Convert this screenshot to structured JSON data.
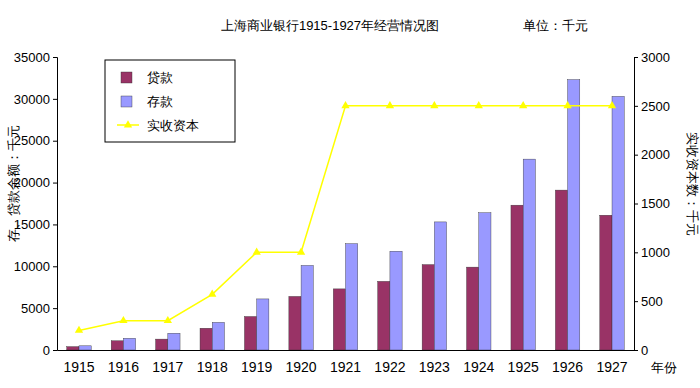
{
  "chart_data": {
    "type": "bar",
    "title": "上海商业银行1915-1927年经营情况图",
    "subtitle": "单位：千元",
    "x_label": "年份",
    "y_label": "存、贷款余额：千元",
    "y2_label": "实收资本数：千元",
    "categories": [
      "1915",
      "1916",
      "1917",
      "1918",
      "1919",
      "1920",
      "1921",
      "1922",
      "1923",
      "1924",
      "1925",
      "1926",
      "1927"
    ],
    "series": [
      {
        "name": "贷款",
        "type": "bar",
        "color": "#993366",
        "values": [
          400,
          1100,
          1300,
          2600,
          4000,
          6400,
          7300,
          8200,
          10200,
          9900,
          17300,
          19100,
          16100
        ]
      },
      {
        "name": "存款",
        "type": "bar",
        "color": "#9999ff",
        "values": [
          500,
          1400,
          2000,
          3300,
          6100,
          10100,
          12700,
          11800,
          15300,
          16400,
          22800,
          32300,
          30300
        ]
      },
      {
        "name": "实收资本",
        "type": "line",
        "axis": "y2",
        "color": "#ffff00",
        "marker": "triangle",
        "values": [
          200,
          300,
          300,
          570,
          1000,
          1000,
          2500,
          2500,
          2500,
          2500,
          2500,
          2500,
          2500
        ]
      }
    ],
    "ylim": [
      0,
      35000
    ],
    "yticks": [
      0,
      5000,
      10000,
      15000,
      20000,
      25000,
      30000,
      35000
    ],
    "y2lim": [
      0,
      3000
    ],
    "y2ticks": [
      0,
      500,
      1000,
      1500,
      2000,
      2500,
      3000
    ],
    "legend": "upper left",
    "grid": false
  }
}
